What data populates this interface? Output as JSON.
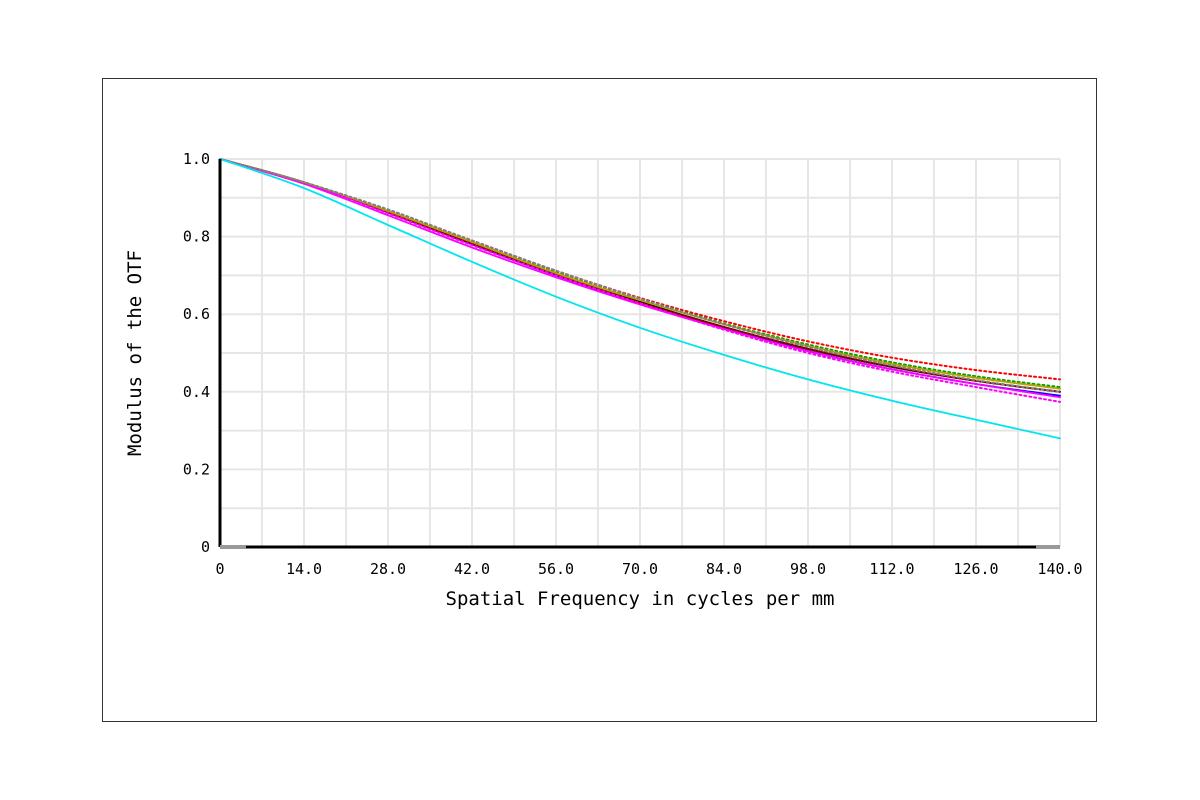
{
  "chart_data": {
    "type": "line",
    "xlabel": "Spatial Frequency in cycles per mm",
    "ylabel": "Modulus of the OTF",
    "xlim": [
      0,
      140
    ],
    "ylim": [
      0,
      1
    ],
    "x_ticks": [
      "0",
      "14.0",
      "28.0",
      "42.0",
      "56.0",
      "70.0",
      "84.0",
      "98.0",
      "112.0",
      "126.0",
      "140.0"
    ],
    "y_ticks": [
      "0",
      "0.2",
      "0.4",
      "0.6",
      "0.8",
      "1.0"
    ],
    "grid": true,
    "x": [
      0,
      14,
      28,
      42,
      56,
      70,
      84,
      98,
      112,
      126,
      140
    ],
    "series": [
      {
        "color": "#000000",
        "style": "solid",
        "values": [
          1.0,
          0.94,
          0.865,
          0.785,
          0.705,
          0.632,
          0.567,
          0.51,
          0.464,
          0.428,
          0.4
        ]
      },
      {
        "color": "#0000ff",
        "style": "solid",
        "values": [
          1.0,
          0.94,
          0.862,
          0.78,
          0.7,
          0.628,
          0.565,
          0.505,
          0.458,
          0.42,
          0.39
        ]
      },
      {
        "color": "#ff0000",
        "style": "dotted",
        "values": [
          1.0,
          0.94,
          0.868,
          0.79,
          0.712,
          0.642,
          0.582,
          0.53,
          0.488,
          0.456,
          0.432
        ]
      },
      {
        "color": "#8b0000",
        "style": "solid",
        "values": [
          1.0,
          0.94,
          0.863,
          0.782,
          0.702,
          0.63,
          0.567,
          0.511,
          0.465,
          0.428,
          0.4
        ]
      },
      {
        "color": "#00a000",
        "style": "dotted",
        "values": [
          1.0,
          0.94,
          0.868,
          0.788,
          0.71,
          0.64,
          0.576,
          0.522,
          0.476,
          0.44,
          0.412
        ]
      },
      {
        "color": "#b8a000",
        "style": "solid",
        "values": [
          1.0,
          0.94,
          0.866,
          0.786,
          0.706,
          0.636,
          0.574,
          0.518,
          0.472,
          0.436,
          0.408
        ]
      },
      {
        "color": "#ff00ff",
        "style": "dotted",
        "values": [
          1.0,
          0.938,
          0.86,
          0.778,
          0.7,
          0.628,
          0.56,
          0.5,
          0.452,
          0.412,
          0.374
        ]
      },
      {
        "color": "#ff00ff",
        "style": "solid",
        "values": [
          1.0,
          0.936,
          0.855,
          0.772,
          0.695,
          0.625,
          0.562,
          0.505,
          0.458,
          0.42,
          0.386
        ]
      },
      {
        "color": "#808080",
        "style": "dotted",
        "values": [
          1.0,
          0.94,
          0.87,
          0.79,
          0.712,
          0.64,
          0.574,
          0.516,
          0.468,
          0.43,
          0.4
        ]
      },
      {
        "color": "#00e5ee",
        "style": "solid",
        "values": [
          1.0,
          0.925,
          0.83,
          0.735,
          0.645,
          0.565,
          0.495,
          0.432,
          0.377,
          0.328,
          0.28
        ]
      }
    ]
  }
}
